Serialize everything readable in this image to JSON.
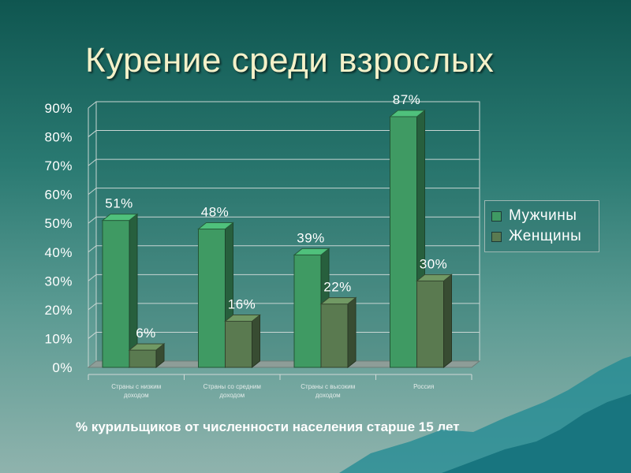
{
  "slide": {
    "title": "Курение среди взрослых",
    "footnote": "% курильщиков от численности населения старше 15 лет"
  },
  "colors": {
    "men": "#3f9a63",
    "women": "#5a7a50",
    "text": "#ffffff",
    "title": "#f4f1c9",
    "grid": "#c8d6d3"
  },
  "chart_data": {
    "type": "bar",
    "categories": [
      "Страны с низким доходом",
      "Страны со средним доходом",
      "Страны с высоким доходом",
      "Россия"
    ],
    "series": [
      {
        "name": "Мужчины",
        "values": [
          51,
          48,
          39,
          87
        ],
        "labels": [
          "51%",
          "48%",
          "39%",
          "87%"
        ]
      },
      {
        "name": "Женщины",
        "values": [
          6,
          16,
          22,
          30
        ],
        "labels": [
          "6%",
          "16%",
          "22%",
          "30%"
        ]
      }
    ],
    "yticks": [
      "0%",
      "10%",
      "20%",
      "30%",
      "40%",
      "50%",
      "60%",
      "70%",
      "80%",
      "90%"
    ],
    "ylim": [
      0,
      90
    ],
    "grid": true,
    "legend": "right",
    "three_d": true
  }
}
